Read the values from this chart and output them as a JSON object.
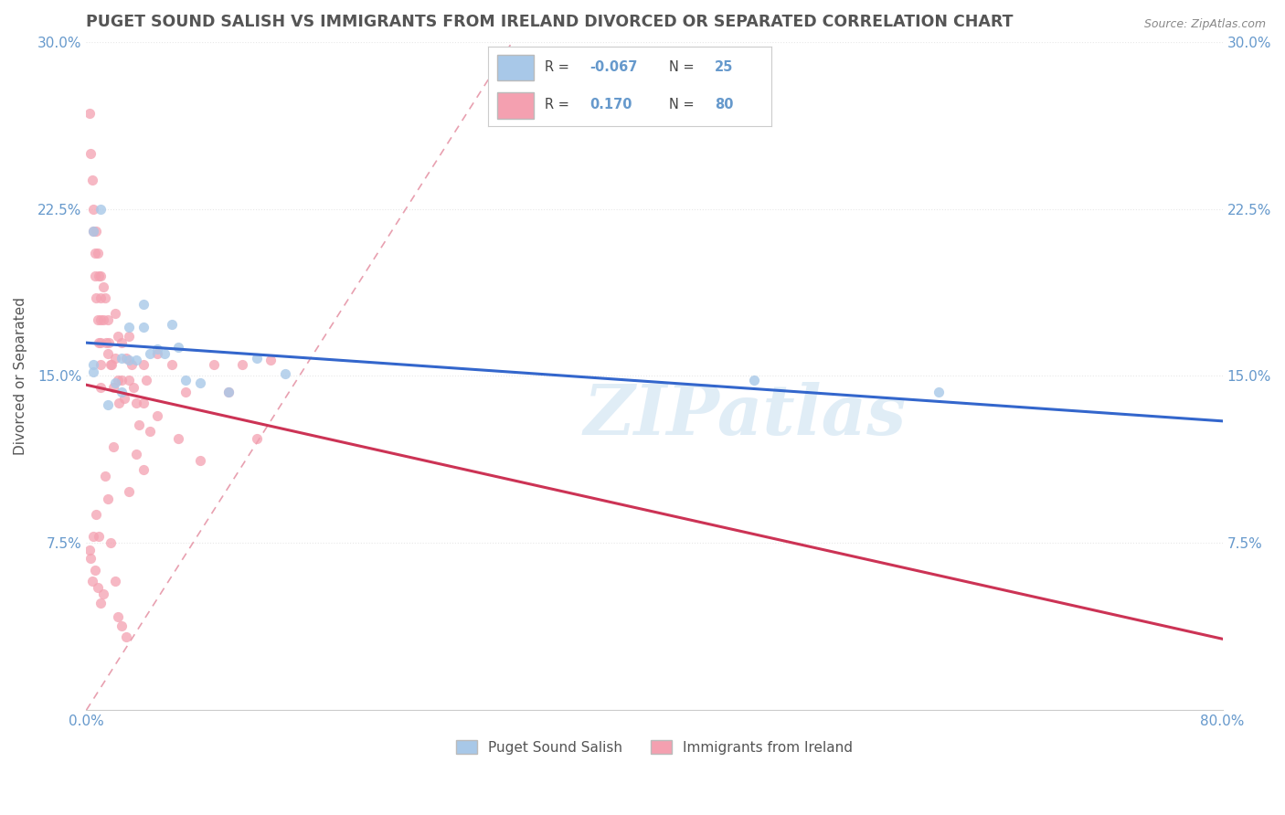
{
  "title": "PUGET SOUND SALISH VS IMMIGRANTS FROM IRELAND DIVORCED OR SEPARATED CORRELATION CHART",
  "source": "Source: ZipAtlas.com",
  "ylabel": "Divorced or Separated",
  "xlim": [
    0.0,
    0.8
  ],
  "ylim": [
    0.0,
    0.3
  ],
  "ytick_positions": [
    0.0,
    0.075,
    0.15,
    0.225,
    0.3
  ],
  "ytick_labels": [
    "",
    "7.5%",
    "15.0%",
    "22.5%",
    "30.0%"
  ],
  "xtick_positions": [
    0.0,
    0.1,
    0.2,
    0.3,
    0.4,
    0.5,
    0.6,
    0.7,
    0.8
  ],
  "xtick_labels": [
    "0.0%",
    "",
    "",
    "",
    "",
    "",
    "",
    "",
    "80.0%"
  ],
  "color_salish": "#a8c8e8",
  "color_ireland": "#f4a0b0",
  "line_salish": "#3366cc",
  "line_ireland": "#cc3355",
  "R_salish": -0.067,
  "N_salish": 25,
  "R_ireland": 0.17,
  "N_ireland": 80,
  "salish_x": [
    0.005,
    0.005,
    0.005,
    0.01,
    0.015,
    0.02,
    0.025,
    0.025,
    0.03,
    0.03,
    0.035,
    0.04,
    0.04,
    0.045,
    0.05,
    0.055,
    0.06,
    0.065,
    0.07,
    0.08,
    0.1,
    0.12,
    0.14,
    0.47,
    0.6
  ],
  "salish_y": [
    0.152,
    0.155,
    0.215,
    0.225,
    0.137,
    0.147,
    0.158,
    0.143,
    0.157,
    0.172,
    0.157,
    0.172,
    0.182,
    0.16,
    0.162,
    0.16,
    0.173,
    0.163,
    0.148,
    0.147,
    0.143,
    0.158,
    0.151,
    0.148,
    0.143
  ],
  "ireland_x": [
    0.002,
    0.003,
    0.004,
    0.005,
    0.005,
    0.006,
    0.006,
    0.007,
    0.007,
    0.008,
    0.008,
    0.009,
    0.009,
    0.01,
    0.01,
    0.01,
    0.01,
    0.01,
    0.01,
    0.012,
    0.012,
    0.013,
    0.014,
    0.015,
    0.015,
    0.016,
    0.017,
    0.018,
    0.019,
    0.02,
    0.02,
    0.022,
    0.022,
    0.023,
    0.025,
    0.025,
    0.027,
    0.028,
    0.03,
    0.03,
    0.032,
    0.033,
    0.035,
    0.037,
    0.04,
    0.04,
    0.042,
    0.045,
    0.05,
    0.05,
    0.06,
    0.065,
    0.07,
    0.08,
    0.09,
    0.1,
    0.11,
    0.12,
    0.13,
    0.002,
    0.003,
    0.004,
    0.005,
    0.006,
    0.007,
    0.008,
    0.009,
    0.01,
    0.012,
    0.013,
    0.015,
    0.017,
    0.019,
    0.02,
    0.022,
    0.025,
    0.028,
    0.03,
    0.035,
    0.04
  ],
  "ireland_y": [
    0.268,
    0.25,
    0.238,
    0.225,
    0.215,
    0.205,
    0.195,
    0.185,
    0.215,
    0.175,
    0.205,
    0.165,
    0.195,
    0.195,
    0.185,
    0.175,
    0.165,
    0.155,
    0.145,
    0.19,
    0.175,
    0.185,
    0.165,
    0.175,
    0.16,
    0.165,
    0.155,
    0.155,
    0.145,
    0.178,
    0.158,
    0.148,
    0.168,
    0.138,
    0.165,
    0.148,
    0.14,
    0.158,
    0.168,
    0.148,
    0.155,
    0.145,
    0.138,
    0.128,
    0.155,
    0.138,
    0.148,
    0.125,
    0.16,
    0.132,
    0.155,
    0.122,
    0.143,
    0.112,
    0.155,
    0.143,
    0.155,
    0.122,
    0.157,
    0.072,
    0.068,
    0.058,
    0.078,
    0.063,
    0.088,
    0.055,
    0.078,
    0.048,
    0.052,
    0.105,
    0.095,
    0.075,
    0.118,
    0.058,
    0.042,
    0.038,
    0.033,
    0.098,
    0.115,
    0.108
  ],
  "watermark_text": "ZIPatlas",
  "background_color": "#ffffff",
  "grid_color": "#e8e8e8",
  "tick_color": "#6699cc",
  "title_color": "#555555",
  "source_color": "#888888"
}
